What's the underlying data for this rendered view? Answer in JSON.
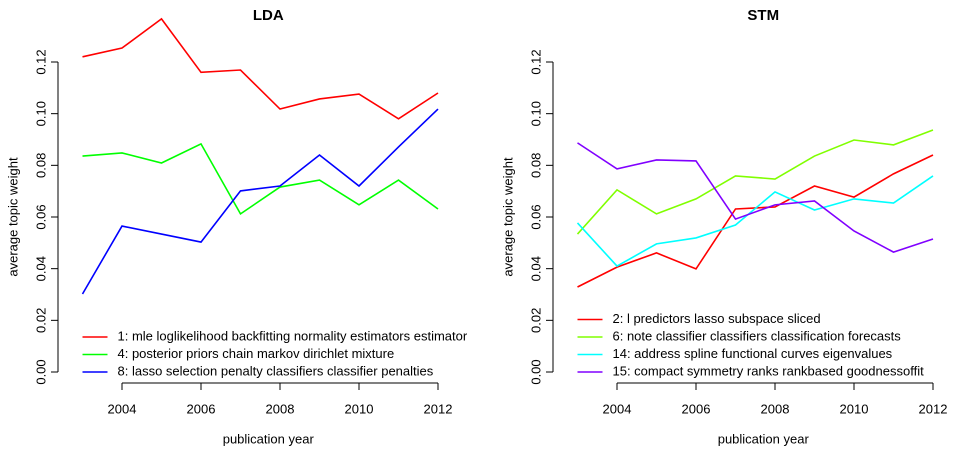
{
  "chart_data": [
    {
      "type": "line",
      "title": "LDA",
      "x_label": "publication year",
      "y_label": "average topic weight",
      "x": [
        2003,
        2004,
        2005,
        2006,
        2007,
        2008,
        2009,
        2010,
        2011,
        2012
      ],
      "xlim": [
        2003,
        2012
      ],
      "xticks": [
        2004,
        2006,
        2008,
        2010,
        2012
      ],
      "ylim": [
        0,
        0.12
      ],
      "yticks": [
        {
          "value": 0,
          "label": "0.00"
        },
        {
          "value": 0.02,
          "label": "0.02"
        },
        {
          "value": 0.04,
          "label": "0.04"
        },
        {
          "value": 0.06,
          "label": "0.06"
        },
        {
          "value": 0.08,
          "label": "0.08"
        },
        {
          "value": 0.1,
          "label": "0.10"
        },
        {
          "value": 0.12,
          "label": "0.12"
        }
      ],
      "legend_position": "bottomleft",
      "series": [
        {
          "name": "1: mle loglikelihood backfitting normality estimators estimator",
          "color": "#ff0000",
          "values": [
            0.122,
            0.1254,
            0.1367,
            0.116,
            0.1169,
            0.1018,
            0.1057,
            0.1076,
            0.098,
            0.108
          ]
        },
        {
          "name": "4: posterior priors chain markov dirichlet mixture",
          "color": "#00ff00",
          "values": [
            0.0836,
            0.0848,
            0.0809,
            0.0883,
            0.0612,
            0.0716,
            0.0743,
            0.0647,
            0.0743,
            0.0631
          ]
        },
        {
          "name": "8: lasso selection penalty classifiers classifier penalties",
          "color": "#0000ff",
          "values": [
            0.0302,
            0.0565,
            0.0534,
            0.0503,
            0.0701,
            0.072,
            0.084,
            0.072,
            0.0871,
            0.1018
          ]
        }
      ]
    },
    {
      "type": "line",
      "title": "STM",
      "x_label": "publication year",
      "y_label": "average topic weight",
      "x": [
        2003,
        2004,
        2005,
        2006,
        2007,
        2008,
        2009,
        2010,
        2011,
        2012
      ],
      "xlim": [
        2003,
        2012
      ],
      "xticks": [
        2004,
        2006,
        2008,
        2010,
        2012
      ],
      "ylim": [
        0,
        0.12
      ],
      "yticks": [
        {
          "value": 0,
          "label": "0.00"
        },
        {
          "value": 0.02,
          "label": "0.02"
        },
        {
          "value": 0.04,
          "label": "0.04"
        },
        {
          "value": 0.06,
          "label": "0.06"
        },
        {
          "value": 0.08,
          "label": "0.08"
        },
        {
          "value": 0.1,
          "label": "0.10"
        },
        {
          "value": 0.12,
          "label": "0.12"
        }
      ],
      "legend_position": "bottomleft",
      "series": [
        {
          "name": "2: l predictors lasso subspace sliced",
          "color": "#ff0000",
          "values": [
            0.0329,
            0.0406,
            0.0461,
            0.0399,
            0.0631,
            0.0639,
            0.072,
            0.0677,
            0.0767,
            0.084
          ]
        },
        {
          "name": "6: note classifier classifiers classification forecasts",
          "color": "#80ff00",
          "values": [
            0.0534,
            0.0705,
            0.0612,
            0.067,
            0.0759,
            0.0747,
            0.0836,
            0.0898,
            0.0879,
            0.0937
          ]
        },
        {
          "name": "14: address spline functional curves eigenvalues",
          "color": "#00ffff",
          "values": [
            0.0577,
            0.041,
            0.0496,
            0.0519,
            0.0569,
            0.0697,
            0.0627,
            0.067,
            0.0654,
            0.0759
          ]
        },
        {
          "name": "15: compact symmetry ranks rankbased goodnessoffit",
          "color": "#8000ff",
          "values": [
            0.0887,
            0.0786,
            0.0821,
            0.0817,
            0.0592,
            0.0647,
            0.0662,
            0.0546,
            0.0464,
            0.0515
          ]
        }
      ]
    }
  ]
}
